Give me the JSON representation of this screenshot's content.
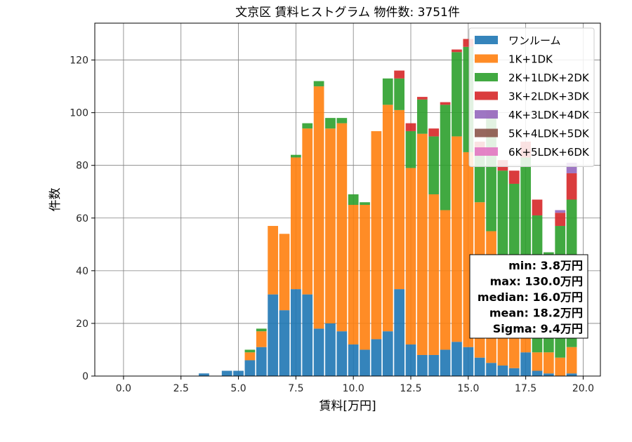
{
  "chart_data": {
    "type": "bar",
    "stacked": true,
    "title": "文京区 賃料ヒストグラム  物件数: 3751件",
    "xlabel": "賃料[万円]",
    "ylabel": "件数",
    "xlim": [
      -1.25,
      20.75
    ],
    "ylim": [
      0,
      134
    ],
    "xticks": [
      0.0,
      2.5,
      5.0,
      7.5,
      10.0,
      12.5,
      15.0,
      17.5,
      20.0
    ],
    "xtick_labels": [
      "0.0",
      "2.5",
      "5.0",
      "7.5",
      "10.0",
      "12.5",
      "15.0",
      "17.5",
      "20.0"
    ],
    "yticks": [
      0,
      20,
      40,
      60,
      80,
      100,
      120
    ],
    "ytick_labels": [
      "0",
      "20",
      "40",
      "60",
      "80",
      "100",
      "120"
    ],
    "grid": true,
    "legend_position": "top-right",
    "bin_width": 0.5,
    "bin_starts": [
      3.25,
      3.75,
      4.25,
      4.75,
      5.25,
      5.75,
      6.25,
      6.75,
      7.25,
      7.75,
      8.25,
      8.75,
      9.25,
      9.75,
      10.25,
      10.75,
      11.25,
      11.75,
      12.25,
      12.75,
      13.25,
      13.75,
      14.25,
      14.75,
      15.25,
      15.75,
      16.25,
      16.75,
      17.25,
      17.75,
      18.25,
      18.75,
      19.25
    ],
    "series": [
      {
        "name": "ワンルーム",
        "color": "#1f77b4",
        "values": [
          1,
          0,
          2,
          2,
          6,
          11,
          31,
          25,
          33,
          31,
          18,
          20,
          17,
          12,
          10,
          14,
          17,
          33,
          12,
          8,
          8,
          10,
          13,
          11,
          7,
          5,
          4,
          3,
          9,
          2,
          1,
          0,
          1
        ]
      },
      {
        "name": "1K+1DK",
        "color": "#ff7f0e",
        "values": [
          0,
          0,
          0,
          0,
          3,
          6,
          26,
          29,
          50,
          63,
          92,
          74,
          79,
          53,
          55,
          79,
          86,
          68,
          67,
          84,
          61,
          53,
          78,
          74,
          59,
          50,
          36,
          30,
          30,
          7,
          8,
          7,
          10
        ]
      },
      {
        "name": "2K+1LDK+2DK",
        "color": "#2ca02c",
        "values": [
          0,
          0,
          0,
          0,
          1,
          1,
          0,
          0,
          1,
          2,
          2,
          4,
          2,
          4,
          1,
          0,
          10,
          12,
          14,
          13,
          22,
          40,
          32,
          40,
          20,
          43,
          38,
          40,
          44,
          52,
          38,
          50,
          56
        ]
      },
      {
        "name": "3K+2LDK+3DK",
        "color": "#d62728",
        "values": [
          0,
          0,
          0,
          0,
          0,
          0,
          0,
          0,
          0,
          0,
          0,
          0,
          0,
          0,
          0,
          0,
          0,
          3,
          3,
          1,
          3,
          1,
          1,
          3,
          3,
          3,
          4,
          5,
          6,
          6,
          0,
          5,
          10
        ]
      },
      {
        "name": "4K+3LDK+4DK",
        "color": "#9467bd",
        "values": [
          0,
          0,
          0,
          0,
          0,
          0,
          0,
          0,
          0,
          0,
          0,
          0,
          0,
          0,
          0,
          0,
          0,
          0,
          0,
          0,
          0,
          0,
          0,
          0,
          0,
          0,
          0,
          0,
          0,
          0,
          0,
          1,
          4
        ]
      },
      {
        "name": "5K+4LDK+5DK",
        "color": "#8c564b",
        "values": [
          0,
          0,
          0,
          0,
          0,
          0,
          0,
          0,
          0,
          0,
          0,
          0,
          0,
          0,
          0,
          0,
          0,
          0,
          0,
          0,
          0,
          0,
          0,
          0,
          0,
          0,
          0,
          0,
          0,
          0,
          0,
          0,
          0
        ]
      },
      {
        "name": "6K+5LDK+6DK",
        "color": "#e377c2",
        "values": [
          0,
          0,
          0,
          0,
          0,
          0,
          0,
          0,
          0,
          0,
          0,
          0,
          0,
          0,
          0,
          0,
          0,
          0,
          0,
          0,
          0,
          0,
          0,
          0,
          0,
          0,
          0,
          0,
          0,
          0,
          0,
          0,
          0
        ]
      }
    ],
    "annotation_lines": [
      "min: 3.8万円",
      "max: 130.0万円",
      "median: 16.0万円",
      "mean: 18.2万円",
      "Sigma: 9.4万円"
    ]
  }
}
